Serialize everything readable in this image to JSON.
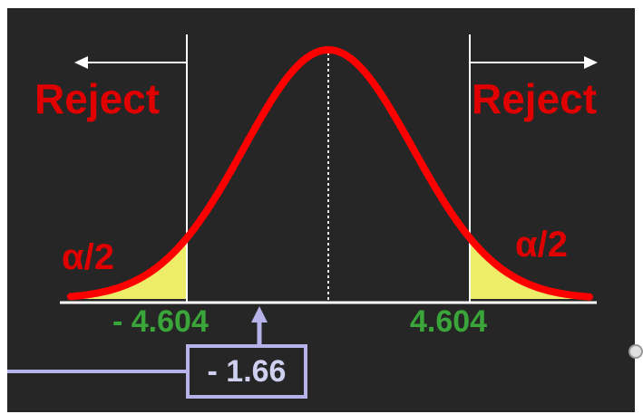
{
  "diagram": {
    "reject_left": "Reject",
    "reject_right": "Reject",
    "alpha_left": "α/2",
    "alpha_right": "α/2",
    "critical_left": "- 4.604",
    "critical_right": "4.604",
    "test_statistic": "- 1.66",
    "colors": {
      "background": "#262626",
      "curve": "#ff0000",
      "reject_text": "#e00000",
      "tail_fill": "#eded6a",
      "critical_text": "#3aa63a",
      "statistic": "#b7b3ea"
    }
  }
}
